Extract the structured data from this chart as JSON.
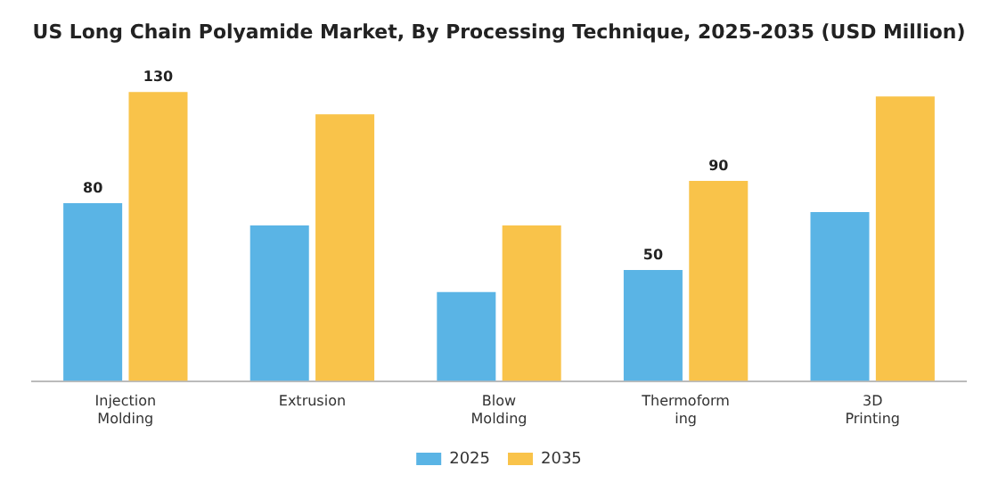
{
  "chart_data": {
    "type": "bar",
    "title": "US Long Chain Polyamide Market, By Processing Technique, 2025-2035 (USD Million)",
    "categories": [
      "Injection Molding",
      "Extrusion",
      "Blow Molding",
      "Thermoforming",
      "3D Printing"
    ],
    "series": [
      {
        "name": "2025",
        "color": "#5ab4e5",
        "values": [
          80,
          70,
          40,
          50,
          76
        ],
        "value_labels": [
          "80",
          null,
          null,
          "50",
          null
        ]
      },
      {
        "name": "2035",
        "color": "#f9c34a",
        "values": [
          130,
          120,
          70,
          90,
          128
        ],
        "value_labels": [
          "130",
          null,
          null,
          "90",
          null
        ]
      }
    ],
    "grid": false,
    "legend": "bottom",
    "tick_labels": "x"
  }
}
